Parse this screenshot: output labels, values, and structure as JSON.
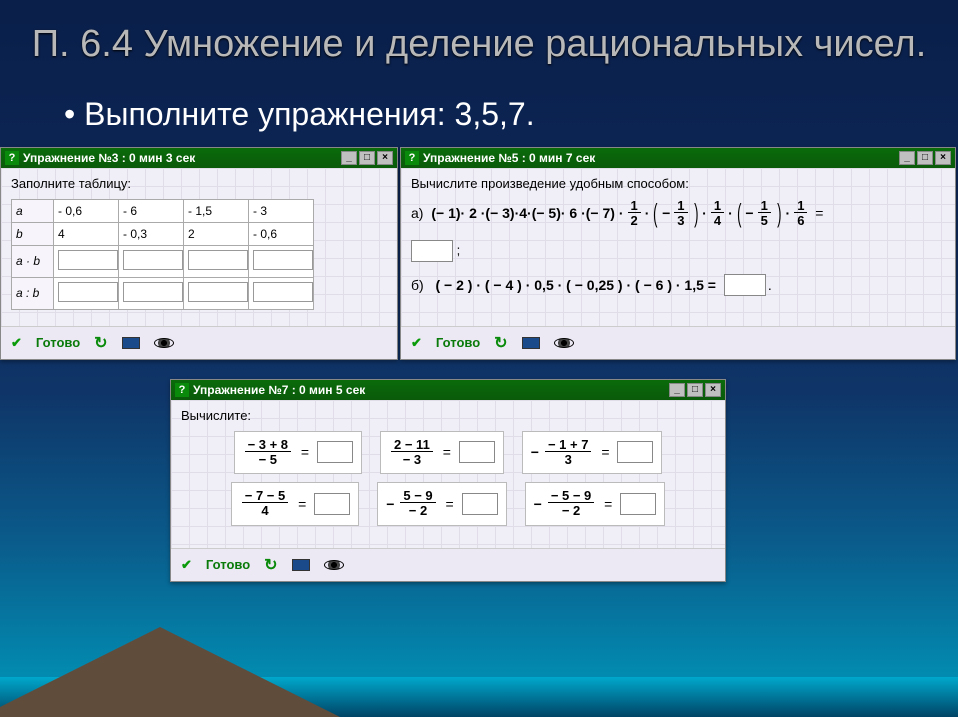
{
  "slide": {
    "title": "П. 6.4 Умножение и деление рациональных чисел.",
    "bullet": "Выполните упражнения: 3,5,7."
  },
  "titlebar_icons": {
    "q": "?",
    "min": "_",
    "max": "□",
    "close": "×"
  },
  "toolbar": {
    "ready": "Готово"
  },
  "app1": {
    "title": "Упражнение №3 : 0 мин  3 сек",
    "instruction": "Заполните таблицу:",
    "rows": {
      "hdr_a": "a",
      "hdr_b": "b",
      "hdr_ab": "a · b",
      "hdr_adivb": "a : b",
      "a": [
        "- 0,6",
        "- 6",
        "- 1,5",
        "- 3"
      ],
      "b": [
        "4",
        "- 0,3",
        "2",
        "- 0,6"
      ]
    }
  },
  "app2": {
    "title": "Упражнение №5 : 0 мин  7 сек",
    "instruction": "Вычислите произведение удобным способом:",
    "label_a": "а)",
    "label_b": "б)",
    "line_b": "( − 2 ) · ( − 4 ) · 0,5 · ( − 0,25 ) · ( − 6 ) · 1,5 ="
  },
  "app3": {
    "title": "Упражнение №7 : 0 мин  5 сек",
    "instruction": "Вычислите:",
    "cells": [
      {
        "num": "− 3 + 8",
        "den": "− 5",
        "prefix": ""
      },
      {
        "num": "2 − 11",
        "den": "− 3",
        "prefix": ""
      },
      {
        "num": "− 1 + 7",
        "den": "3",
        "prefix": "−"
      },
      {
        "num": "− 7 − 5",
        "den": "4",
        "prefix": ""
      },
      {
        "num": "5 − 9",
        "den": "− 2",
        "prefix": "−"
      },
      {
        "num": "− 5 − 9",
        "den": "− 2",
        "prefix": "−"
      }
    ]
  },
  "colors": {
    "titlebar": "#0a6b0a",
    "body_bg": "#f0eef6",
    "ready": "#0a7a0a"
  }
}
